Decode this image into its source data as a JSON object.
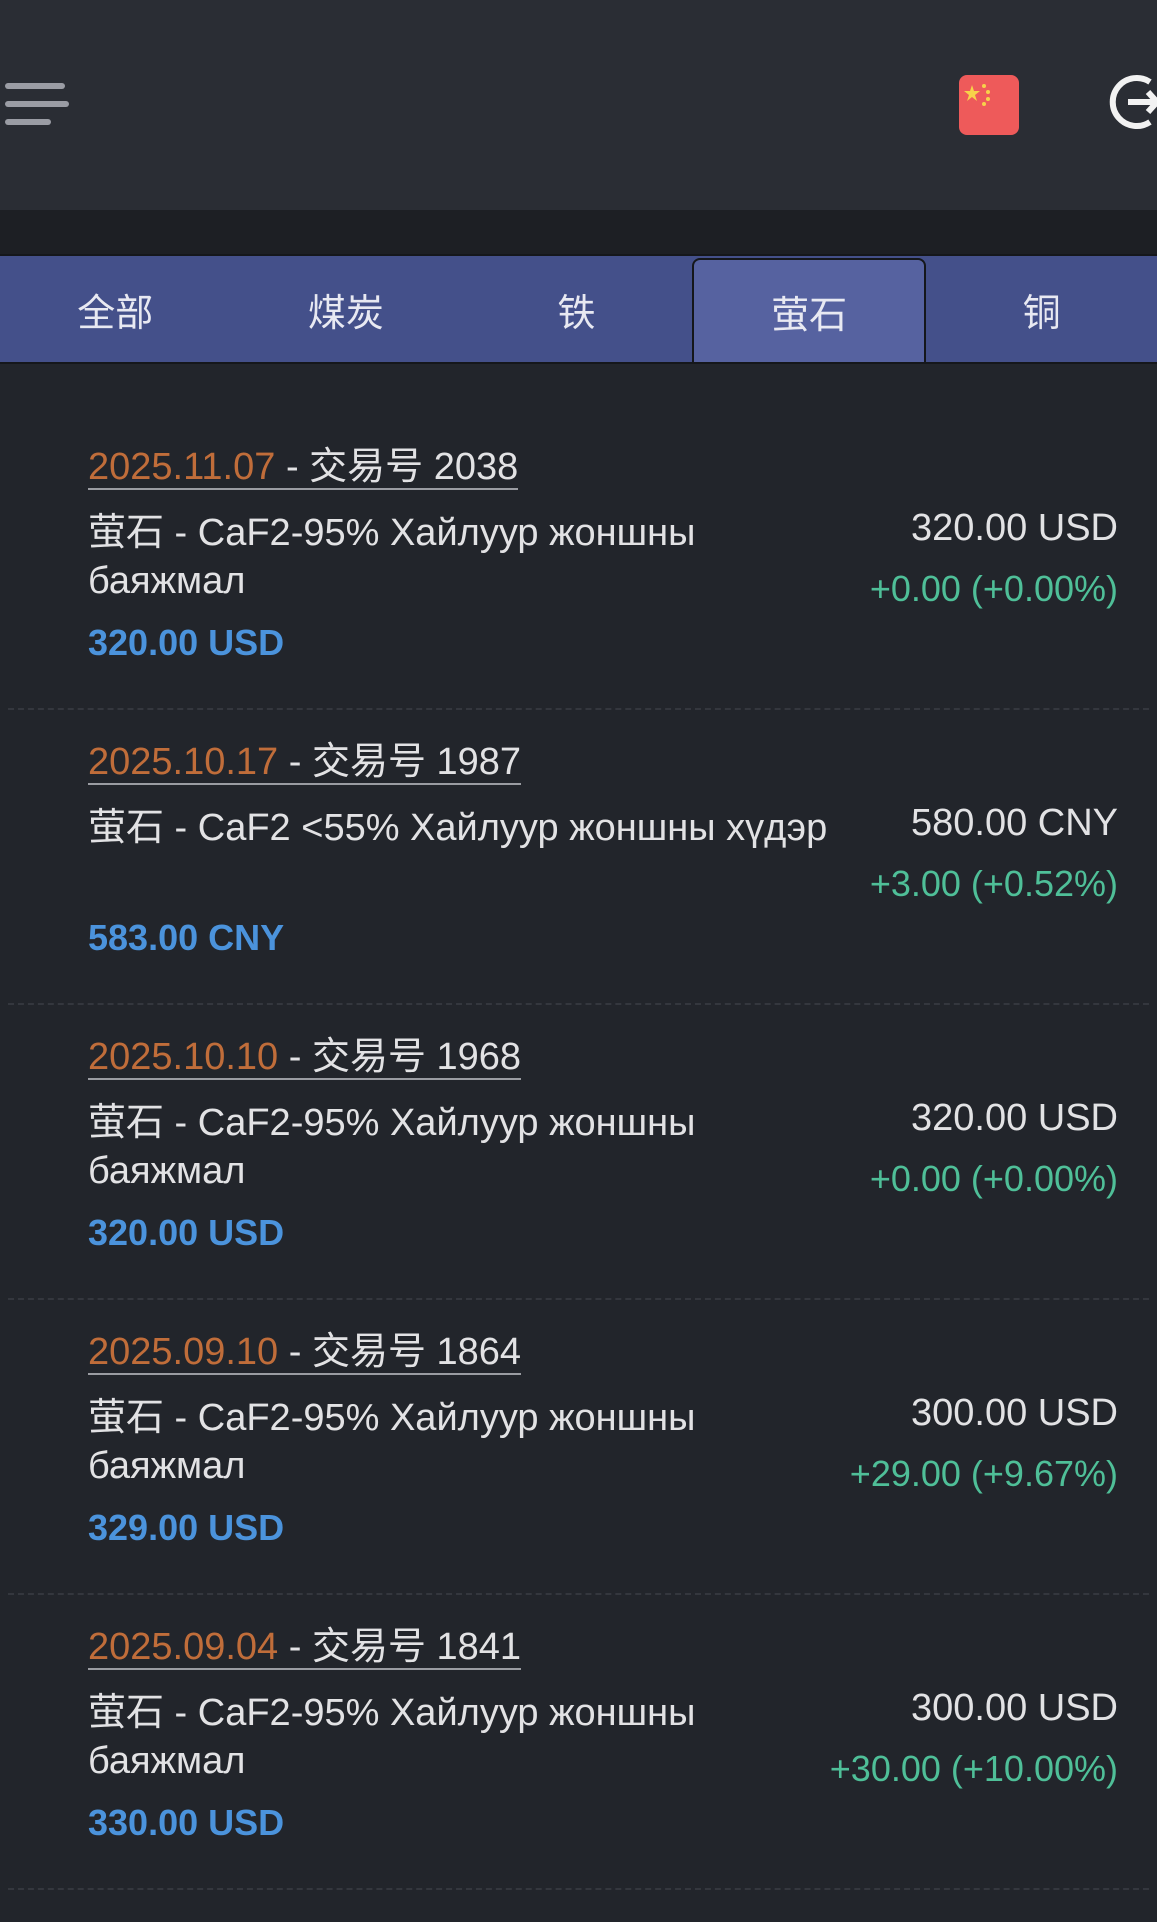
{
  "tabs": [
    "全部",
    "煤炭",
    "铁",
    "萤石",
    "铜"
  ],
  "active_tab": 3,
  "items": [
    {
      "date": "2025.11.07",
      "trade": "- 交易号 2038",
      "product": "萤石 - CaF2-95% Хайлуур жоншны баяжмал",
      "price": "320.00 USD",
      "change": "+0.00 (+0.00%)",
      "current": "320.00 USD"
    },
    {
      "date": "2025.10.17",
      "trade": "- 交易号 1987",
      "product": "萤石 - CaF2 <55% Хайлуур жоншны хүдэр",
      "price": "583.00 CNY",
      "change": "+3.00 (+0.52%)",
      "current": "580.00 CNY"
    },
    {
      "date": "2025.10.10",
      "trade": "- 交易号 1968",
      "product": "萤石 - CaF2-95% Хайлуур жоншны баяжмал",
      "price": "320.00 USD",
      "change": "+0.00 (+0.00%)",
      "current": "320.00 USD"
    },
    {
      "date": "2025.09.10",
      "trade": "- 交易号 1864",
      "product": "萤石 - CaF2-95% Хайлуур жоншны баяжмал",
      "price": "329.00 USD",
      "change": "+29.00 (+9.67%)",
      "current": "300.00 USD"
    },
    {
      "date": "2025.09.04",
      "trade": "- 交易号 1841",
      "product": "萤石 - CaF2-95% Хайлуур жоншны баяжмал",
      "price": "330.00 USD",
      "change": "+30.00 (+10.00%)",
      "current": "300.00 USD"
    }
  ]
}
